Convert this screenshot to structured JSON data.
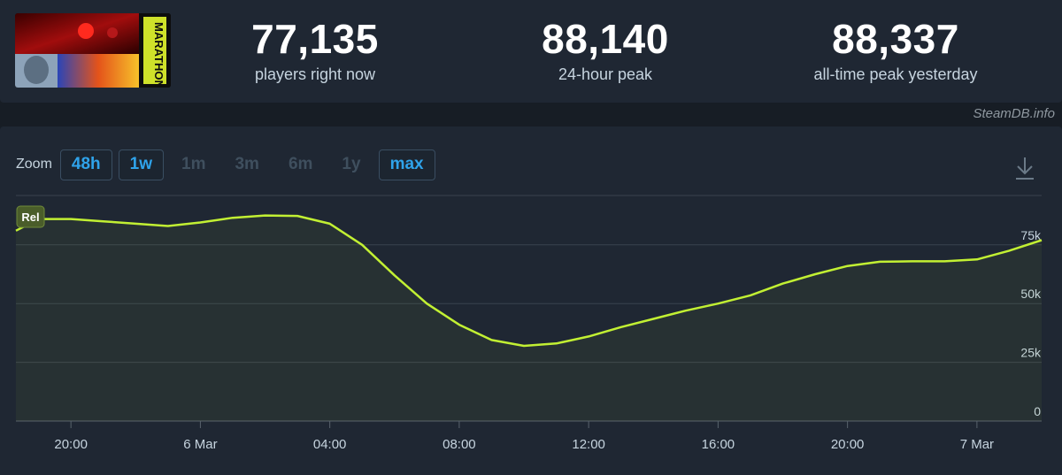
{
  "game": {
    "logo_text": "MARATHON"
  },
  "stats": [
    {
      "value": "77,135",
      "label": "players right now"
    },
    {
      "value": "88,140",
      "label": "24-hour peak"
    },
    {
      "value": "88,337",
      "label": "all-time peak yesterday"
    }
  ],
  "credit": "SteamDB.info",
  "zoom": {
    "label": "Zoom",
    "options": [
      {
        "label": "48h",
        "enabled": true
      },
      {
        "label": "1w",
        "enabled": true
      },
      {
        "label": "1m",
        "enabled": false
      },
      {
        "label": "3m",
        "enabled": false
      },
      {
        "label": "6m",
        "enabled": false
      },
      {
        "label": "1y",
        "enabled": false
      },
      {
        "label": "max",
        "enabled": true
      }
    ]
  },
  "icons": {
    "download": "download-icon"
  },
  "colors": {
    "line": "#c2f033",
    "accent": "#2fa3ea",
    "background": "#1f2733"
  },
  "chart_data": {
    "type": "line",
    "x_unit": "hours",
    "x_ticks": [
      {
        "label": "20:00",
        "hour": 20
      },
      {
        "label": "6 Mar",
        "hour": 24
      },
      {
        "label": "04:00",
        "hour": 28
      },
      {
        "label": "08:00",
        "hour": 32
      },
      {
        "label": "12:00",
        "hour": 36
      },
      {
        "label": "16:00",
        "hour": 40
      },
      {
        "label": "20:00",
        "hour": 44
      },
      {
        "label": "7 Mar",
        "hour": 48
      }
    ],
    "xlim": [
      18.3,
      50.0
    ],
    "ylim": [
      0,
      96000
    ],
    "y_ticks": [
      {
        "label": "0",
        "value": 0
      },
      {
        "label": "25k",
        "value": 25000
      },
      {
        "label": "50k",
        "value": 50000
      },
      {
        "label": "75k",
        "value": 75000
      }
    ],
    "series": [
      {
        "points": [
          [
            18.3,
            81000
          ],
          [
            19.0,
            86000
          ],
          [
            20.0,
            86000
          ],
          [
            21.0,
            85000
          ],
          [
            22.0,
            84000
          ],
          [
            23.0,
            83000
          ],
          [
            24.0,
            84500
          ],
          [
            25.0,
            86500
          ],
          [
            26.0,
            87500
          ],
          [
            27.0,
            87300
          ],
          [
            28.0,
            84000
          ],
          [
            29.0,
            75000
          ],
          [
            30.0,
            62000
          ],
          [
            31.0,
            50000
          ],
          [
            32.0,
            41000
          ],
          [
            33.0,
            34500
          ],
          [
            34.0,
            32000
          ],
          [
            35.0,
            33000
          ],
          [
            36.0,
            36000
          ],
          [
            37.0,
            40000
          ],
          [
            38.0,
            43500
          ],
          [
            39.0,
            47000
          ],
          [
            40.0,
            50000
          ],
          [
            41.0,
            53500
          ],
          [
            42.0,
            58500
          ],
          [
            43.0,
            62500
          ],
          [
            44.0,
            66000
          ],
          [
            45.0,
            67800
          ],
          [
            46.0,
            68000
          ],
          [
            47.0,
            68000
          ],
          [
            48.0,
            68800
          ],
          [
            49.0,
            72500
          ],
          [
            50.0,
            77000
          ]
        ]
      }
    ],
    "badge": "Rel"
  }
}
